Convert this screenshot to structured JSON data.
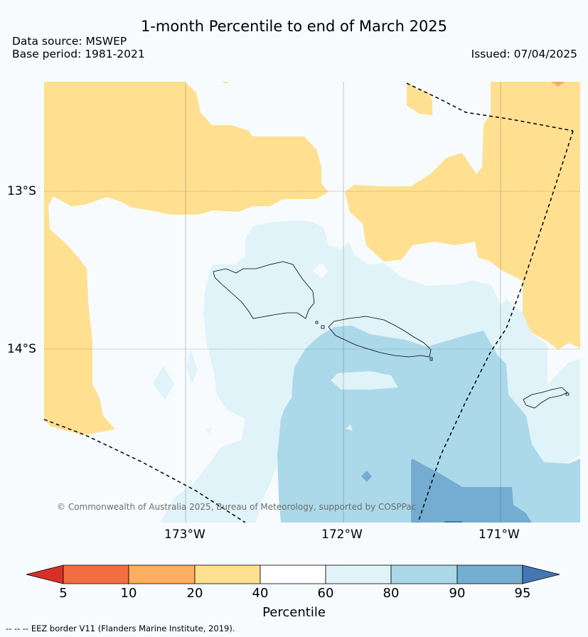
{
  "title": "1-month Percentile to end of March 2025",
  "data_source": "Data source: MSWEP",
  "base_period": "Base period: 1981-2021",
  "issued": "Issued: 07/04/2025",
  "lat_labels": [
    "13°S",
    "14°S"
  ],
  "lon_labels": [
    "173°W",
    "172°W",
    "171°W"
  ],
  "copyright": "© Commonwealth of Australia 2025, Bureau of Meteorology, supported by COSPPac",
  "colorbar": {
    "ticks": [
      "5",
      "10",
      "20",
      "40",
      "60",
      "80",
      "90",
      "95"
    ],
    "label": "Percentile",
    "colors": [
      "#d73027",
      "#f46d43",
      "#fdae61",
      "#fee090",
      "#ffffff",
      "#e0f3f8",
      "#abd9e9",
      "#74add1",
      "#4575b4"
    ]
  },
  "footer": "-- -- -- EEZ border V11 (Flanders Marine Institute, 2019)."
}
